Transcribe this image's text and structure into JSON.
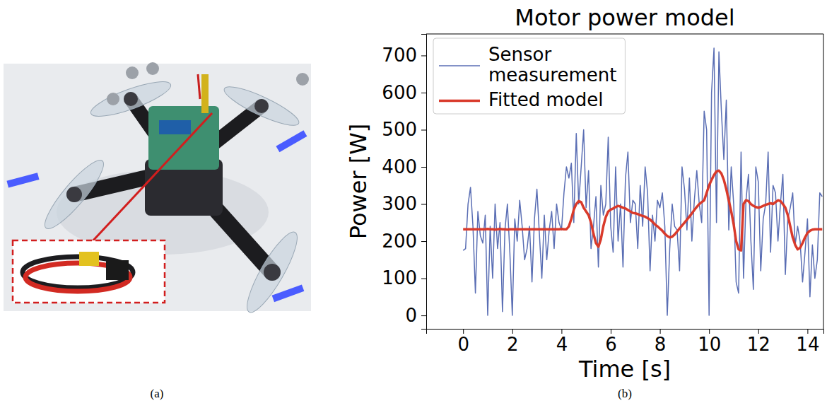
{
  "figure_labels": [
    "(a)",
    "(b)"
  ],
  "chart_data": {
    "type": "line",
    "title": "Motor power model",
    "x_label": "Time [s]",
    "y_label": "Power [W]",
    "x": [
      0,
      0.1,
      0.2,
      0.3,
      0.4,
      0.5,
      0.6,
      0.7,
      0.8,
      0.9,
      1,
      1.1,
      1.2,
      1.3,
      1.4,
      1.5,
      1.6,
      1.7,
      1.8,
      1.9,
      2,
      2.1,
      2.2,
      2.3,
      2.4,
      2.5,
      2.6,
      2.7,
      2.8,
      2.9,
      3,
      3.1,
      3.2,
      3.3,
      3.4,
      3.5,
      3.6,
      3.7,
      3.8,
      3.9,
      4,
      4.1,
      4.2,
      4.3,
      4.4,
      4.5,
      4.6,
      4.7,
      4.8,
      4.9,
      5,
      5.1,
      5.2,
      5.3,
      5.4,
      5.5,
      5.6,
      5.7,
      5.8,
      5.9,
      6,
      6.1,
      6.2,
      6.3,
      6.4,
      6.5,
      6.6,
      6.7,
      6.8,
      6.9,
      7,
      7.1,
      7.2,
      7.3,
      7.4,
      7.5,
      7.6,
      7.7,
      7.8,
      7.9,
      8,
      8.1,
      8.2,
      8.3,
      8.4,
      8.5,
      8.6,
      8.7,
      8.8,
      8.9,
      9,
      9.1,
      9.2,
      9.3,
      9.4,
      9.5,
      9.6,
      9.7,
      9.8,
      9.9,
      10,
      10.1,
      10.2,
      10.3,
      10.4,
      10.5,
      10.6,
      10.7,
      10.8,
      10.9,
      11,
      11.1,
      11.2,
      11.3,
      11.4,
      11.5,
      11.6,
      11.7,
      11.8,
      11.9,
      12,
      12.1,
      12.2,
      12.3,
      12.4,
      12.5,
      12.6,
      12.7,
      12.8,
      12.9,
      13,
      13.1,
      13.2,
      13.3,
      13.4,
      13.5,
      13.6,
      13.7,
      13.8,
      13.9,
      14,
      14.1,
      14.2,
      14.3,
      14.4,
      14.5,
      14.6
    ],
    "series": [
      {
        "name": "Sensor\nmeasurement",
        "color": "#5a6eb4",
        "values": [
          175,
          180,
          300,
          345,
          240,
          60,
          280,
          215,
          195,
          270,
          0,
          240,
          100,
          300,
          180,
          250,
          10,
          230,
          300,
          170,
          0,
          260,
          200,
          310,
          240,
          150,
          180,
          240,
          90,
          260,
          340,
          220,
          100,
          270,
          150,
          230,
          280,
          180,
          300,
          250,
          230,
          330,
          400,
          370,
          410,
          250,
          490,
          300,
          400,
          500,
          290,
          390,
          180,
          240,
          320,
          130,
          350,
          270,
          300,
          480,
          240,
          170,
          400,
          200,
          300,
          130,
          370,
          440,
          250,
          310,
          300,
          180,
          350,
          240,
          400,
          330,
          120,
          270,
          200,
          310,
          290,
          330,
          240,
          0,
          180,
          300,
          240,
          230,
          120,
          400,
          340,
          230,
          370,
          200,
          310,
          390,
          300,
          250,
          550,
          500,
          0,
          600,
          720,
          250,
          710,
          550,
          420,
          580,
          230,
          400,
          300,
          90,
          60,
          440,
          100,
          310,
          380,
          200,
          70,
          400,
          360,
          120,
          260,
          300,
          440,
          170,
          350,
          330,
          200,
          300,
          380,
          110,
          260,
          290,
          330,
          190,
          240,
          200,
          90,
          170,
          260,
          50,
          190,
          100,
          150,
          330,
          320
        ]
      },
      {
        "name": "Fitted model",
        "color": "#d93a2b",
        "values": [
          232,
          232,
          232,
          232,
          232,
          232,
          232,
          232,
          232,
          232,
          233,
          232,
          232,
          231,
          232,
          233,
          232,
          232,
          231,
          232,
          232,
          232,
          232,
          232,
          232,
          232,
          232,
          232,
          232,
          232,
          232,
          232,
          232,
          232,
          232,
          232,
          232,
          232,
          232,
          232,
          233,
          232,
          232,
          240,
          260,
          285,
          300,
          308,
          305,
          290,
          280,
          270,
          250,
          220,
          195,
          185,
          205,
          240,
          265,
          280,
          285,
          288,
          292,
          295,
          293,
          290,
          288,
          284,
          280,
          276,
          275,
          273,
          270,
          268,
          266,
          262,
          258,
          252,
          245,
          240,
          234,
          228,
          220,
          214,
          210,
          212,
          218,
          226,
          234,
          242,
          250,
          258,
          266,
          275,
          284,
          292,
          300,
          305,
          310,
          330,
          350,
          365,
          378,
          388,
          390,
          382,
          365,
          340,
          310,
          280,
          245,
          200,
          178,
          175,
          300,
          310,
          308,
          300,
          295,
          292,
          290,
          292,
          295,
          298,
          300,
          302,
          300,
          305,
          310,
          308,
          300,
          290,
          270,
          240,
          210,
          190,
          178,
          182,
          195,
          210,
          222,
          228,
          231,
          232,
          232,
          232,
          232
        ]
      }
    ],
    "xlim": [
      -1.5,
      14.65
    ],
    "ylim": [
      -36,
      758
    ],
    "xticks": [
      0,
      2,
      4,
      6,
      8,
      10,
      12,
      14
    ],
    "yticks": [
      0,
      100,
      200,
      300,
      400,
      500,
      600,
      700
    ],
    "legend": "upper left",
    "grid": false
  }
}
